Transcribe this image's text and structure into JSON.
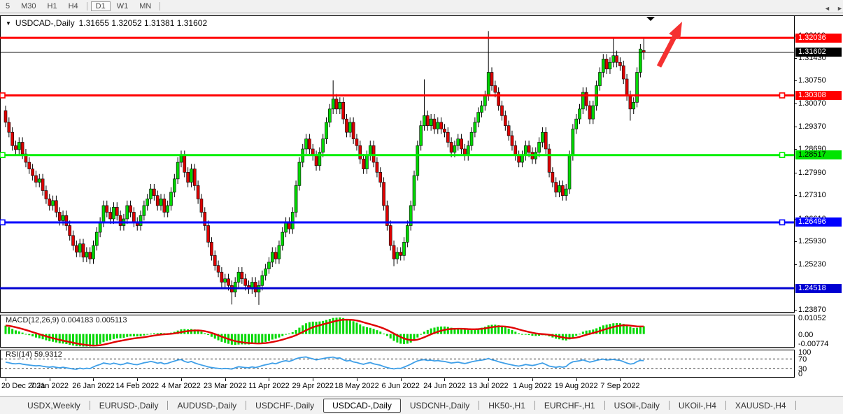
{
  "toolbar": {
    "timeframes": [
      {
        "label": "5",
        "active": false
      },
      {
        "label": "M30",
        "active": false
      },
      {
        "label": "H1",
        "active": false
      },
      {
        "label": "H4",
        "active": false
      },
      {
        "label": "D1",
        "active": true
      },
      {
        "label": "W1",
        "active": false
      },
      {
        "label": "MN",
        "active": false
      }
    ]
  },
  "title": {
    "dropdown_icon": "▼",
    "symbol": "USDCAD-,Daily",
    "ohlc": "1.31655 1.32052 1.31381 1.31602"
  },
  "chart_data": {
    "type": "candlestick",
    "symbol": "USDCAD-,Daily",
    "timeframe": "Daily",
    "current_ohlc": {
      "open": 1.31655,
      "high": 1.32052,
      "low": 1.31381,
      "close": 1.31602
    },
    "y_axis": {
      "price_max_top": 1.32291,
      "price_min_bottom": 1.23786,
      "plain_ticks": [
        1.3211,
        1.3143,
        1.3075,
        1.3007,
        1.2937,
        1.2869,
        1.2799,
        1.2731,
        1.2661,
        1.2593,
        1.2523,
        1.2387
      ],
      "badges": [
        {
          "value": "1.32036",
          "price": 1.32036,
          "bg": "#ff0000",
          "fg": "#ffffff"
        },
        {
          "value": "1.31602",
          "price": 1.31602,
          "bg": "#000000",
          "fg": "#ffffff"
        },
        {
          "value": "1.30308",
          "price": 1.30308,
          "bg": "#ff0000",
          "fg": "#ffffff"
        },
        {
          "value": "1.28517",
          "price": 1.28517,
          "bg": "#00e400",
          "fg": "#000000"
        },
        {
          "value": "1.26496",
          "price": 1.26496,
          "bg": "#0000ff",
          "fg": "#ffffff"
        },
        {
          "value": "1.24518",
          "price": 1.24518,
          "bg": "#0000d2",
          "fg": "#ffffff"
        }
      ]
    },
    "x_axis_dates": [
      "20 Dec 2021",
      "7 Jan 2022",
      "26 Jan 2022",
      "14 Feb 2022",
      "4 Mar 2022",
      "23 Mar 2022",
      "11 Apr 2022",
      "29 Apr 2022",
      "18 May 2022",
      "6 Jun 2022",
      "24 Jun 2022",
      "13 Jul 2022",
      "1 Aug 2022",
      "19 Aug 2022",
      "7 Sep 2022"
    ],
    "hlines": [
      {
        "price": 1.32036,
        "color": "#ff0000",
        "width": 3,
        "handles": false
      },
      {
        "price": 1.30308,
        "color": "#ff0000",
        "width": 3,
        "handles": true
      },
      {
        "price": 1.28517,
        "color": "#00ef00",
        "width": 3,
        "handles": true
      },
      {
        "price": 1.26496,
        "color": "#0000ff",
        "width": 3,
        "handles": true
      },
      {
        "price": 1.24518,
        "color": "#0000d2",
        "width": 3,
        "handles": false
      }
    ],
    "price_line": {
      "price": 1.31602,
      "color": "#000000"
    },
    "candles": {
      "up_color": "#00d800",
      "down_color": "#dd0000",
      "outline": "#000000",
      "first_open": 1.2985,
      "default_wick": 0.0015,
      "closes": [
        1.295,
        1.292,
        1.288,
        1.2868,
        1.289,
        1.2855,
        1.283,
        1.281,
        1.279,
        1.277,
        1.278,
        1.2745,
        1.272,
        1.27,
        1.2715,
        1.268,
        1.2655,
        1.267,
        1.264,
        1.261,
        1.258,
        1.256,
        1.2585,
        1.2545,
        1.256,
        1.254,
        1.258,
        1.262,
        1.265,
        1.27,
        1.268,
        1.266,
        1.2695,
        1.267,
        1.264,
        1.266,
        1.27,
        1.268,
        1.265,
        1.264,
        1.267,
        1.27,
        1.272,
        1.275,
        1.273,
        1.27,
        1.272,
        1.268,
        1.27,
        1.274,
        1.278,
        1.283,
        1.285,
        1.28,
        1.277,
        1.281,
        1.276,
        1.272,
        1.268,
        1.264,
        1.259,
        1.255,
        1.252,
        1.25,
        1.247,
        1.248,
        1.246,
        1.244,
        1.247,
        1.25,
        1.248,
        1.246,
        1.245,
        1.247,
        1.244,
        1.246,
        1.249,
        1.251,
        1.253,
        1.256,
        1.254,
        1.258,
        1.262,
        1.265,
        1.263,
        1.268,
        1.276,
        1.283,
        1.287,
        1.29,
        1.287,
        1.285,
        1.282,
        1.286,
        1.29,
        1.295,
        1.299,
        1.302,
        1.299,
        1.301,
        1.296,
        1.292,
        1.295,
        1.29,
        1.288,
        1.284,
        1.281,
        1.285,
        1.288,
        1.283,
        1.28,
        1.277,
        1.27,
        1.264,
        1.258,
        1.254,
        1.256,
        1.255,
        1.259,
        1.264,
        1.27,
        1.279,
        1.288,
        1.294,
        1.297,
        1.294,
        1.296,
        1.293,
        1.295,
        1.293,
        1.292,
        1.289,
        1.286,
        1.288,
        1.29,
        1.287,
        1.285,
        1.288,
        1.292,
        1.295,
        1.298,
        1.3,
        1.303,
        1.31,
        1.306,
        1.304,
        1.3,
        1.297,
        1.294,
        1.291,
        1.288,
        1.285,
        1.283,
        1.285,
        1.288,
        1.286,
        1.284,
        1.286,
        1.289,
        1.292,
        1.287,
        1.28,
        1.277,
        1.274,
        1.276,
        1.273,
        1.275,
        1.285,
        1.293,
        1.296,
        1.299,
        1.304,
        1.3,
        1.296,
        1.3,
        1.306,
        1.31,
        1.314,
        1.311,
        1.313,
        1.315,
        1.313,
        1.312,
        1.308,
        1.303,
        1.299,
        1.301,
        1.31,
        1.317,
        1.31602
      ],
      "overrides": {
        "67": {
          "l": 1.2403
        },
        "75": {
          "l": 1.2402
        },
        "97": {
          "h": 1.3076
        },
        "115": {
          "l": 1.2518
        },
        "124": {
          "h": 1.3079
        },
        "143": {
          "h": 1.3224
        },
        "180": {
          "h": 1.3204
        },
        "185": {
          "l": 1.2955
        },
        "189": {
          "o": 1.31655,
          "h": 1.32052,
          "l": 1.31381,
          "c": 1.31602
        }
      }
    },
    "macd": {
      "label": "MACD(12,26,9)",
      "value_macd": "0.004183",
      "value_signal": "0.005113",
      "fast": 12,
      "slow": 26,
      "signal": 9,
      "axis_ticks": [
        {
          "text": "0.01052",
          "value": 0.01052
        },
        {
          "text": "0.00",
          "value": 0.0
        },
        {
          "text": "-0.00774",
          "value": -0.00774
        }
      ],
      "hist_color": "#00d800",
      "signal_color": "#e00000"
    },
    "rsi": {
      "label": "RSI(14)",
      "value": "59.9312",
      "period": 14,
      "levels": [
        70,
        30
      ],
      "axis_ticks": [
        {
          "text": "100",
          "value": 100
        },
        {
          "text": "70",
          "value": 70
        },
        {
          "text": "30",
          "value": 30
        },
        {
          "text": "0",
          "value": 0
        }
      ],
      "line_color": "#3e9fe8"
    },
    "annotations": {
      "trend_arrow_color": "#f53131",
      "shift_marker_color": "#000000"
    }
  },
  "tab_bar": {
    "active": "USDCAD-,Daily",
    "tabs": [
      "USDX,Weekly",
      "EURUSD-,Daily",
      "AUDUSD-,Daily",
      "USDCHF-,Daily",
      "USDCAD-,Daily",
      "USDCNH-,Daily",
      "HK50-,H1",
      "EURCHF-,H1",
      "USOil-,Daily",
      "UKOil-,H4",
      "XAUUSD-,H4"
    ],
    "scroll_left_icon": "◄",
    "scroll_right_icon": "►"
  }
}
